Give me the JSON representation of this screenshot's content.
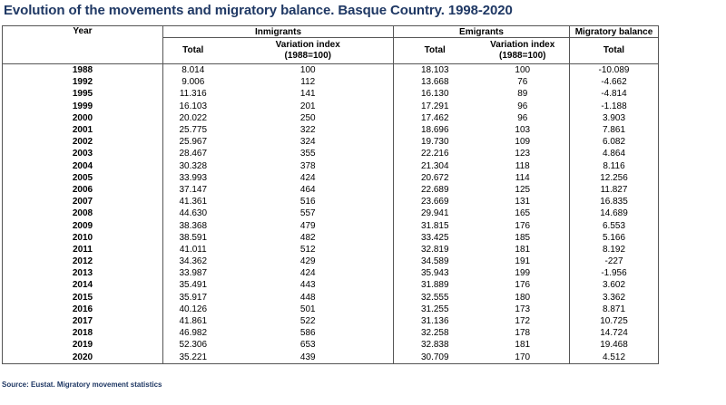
{
  "title": "Evolution of the movements and migratory balance. Basque Country. 1998-2020",
  "headers": {
    "year": "Year",
    "inmigrants": "Inmigrants",
    "emigrants": "Emigrants",
    "migratory_balance": "Migratory balance",
    "total": "Total",
    "variation_index": "Variation index",
    "base": "(1988=100)"
  },
  "rows": [
    {
      "year": "1988",
      "in_total": "8.014",
      "in_index": "100",
      "em_total": "18.103",
      "em_index": "100",
      "balance": "-10.089"
    },
    {
      "year": "1992",
      "in_total": "9.006",
      "in_index": "112",
      "em_total": "13.668",
      "em_index": "76",
      "balance": "-4.662"
    },
    {
      "year": "1995",
      "in_total": "11.316",
      "in_index": "141",
      "em_total": "16.130",
      "em_index": "89",
      "balance": "-4.814"
    },
    {
      "year": "1999",
      "in_total": "16.103",
      "in_index": "201",
      "em_total": "17.291",
      "em_index": "96",
      "balance": "-1.188"
    },
    {
      "year": "2000",
      "in_total": "20.022",
      "in_index": "250",
      "em_total": "17.462",
      "em_index": "96",
      "balance": "3.903"
    },
    {
      "year": "2001",
      "in_total": "25.775",
      "in_index": "322",
      "em_total": "18.696",
      "em_index": "103",
      "balance": "7.861"
    },
    {
      "year": "2002",
      "in_total": "25.967",
      "in_index": "324",
      "em_total": "19.730",
      "em_index": "109",
      "balance": "6.082"
    },
    {
      "year": "2003",
      "in_total": "28.467",
      "in_index": "355",
      "em_total": "22.216",
      "em_index": "123",
      "balance": "4.864"
    },
    {
      "year": "2004",
      "in_total": "30.328",
      "in_index": "378",
      "em_total": "21.304",
      "em_index": "118",
      "balance": "8.116"
    },
    {
      "year": "2005",
      "in_total": "33.993",
      "in_index": "424",
      "em_total": "20.672",
      "em_index": "114",
      "balance": "12.256"
    },
    {
      "year": "2006",
      "in_total": "37.147",
      "in_index": "464",
      "em_total": "22.689",
      "em_index": "125",
      "balance": "11.827"
    },
    {
      "year": "2007",
      "in_total": "41.361",
      "in_index": "516",
      "em_total": "23.669",
      "em_index": "131",
      "balance": "16.835"
    },
    {
      "year": "2008",
      "in_total": "44.630",
      "in_index": "557",
      "em_total": "29.941",
      "em_index": "165",
      "balance": "14.689"
    },
    {
      "year": "2009",
      "in_total": "38.368",
      "in_index": "479",
      "em_total": "31.815",
      "em_index": "176",
      "balance": "6.553"
    },
    {
      "year": "2010",
      "in_total": "38.591",
      "in_index": "482",
      "em_total": "33.425",
      "em_index": "185",
      "balance": "5.166"
    },
    {
      "year": "2011",
      "in_total": "41.011",
      "in_index": "512",
      "em_total": "32.819",
      "em_index": "181",
      "balance": "8.192"
    },
    {
      "year": "2012",
      "in_total": "34.362",
      "in_index": "429",
      "em_total": "34.589",
      "em_index": "191",
      "balance": "-227"
    },
    {
      "year": "2013",
      "in_total": "33.987",
      "in_index": "424",
      "em_total": "35.943",
      "em_index": "199",
      "balance": "-1.956"
    },
    {
      "year": "2014",
      "in_total": "35.491",
      "in_index": "443",
      "em_total": "31.889",
      "em_index": "176",
      "balance": "3.602"
    },
    {
      "year": "2015",
      "in_total": "35.917",
      "in_index": "448",
      "em_total": "32.555",
      "em_index": "180",
      "balance": "3.362"
    },
    {
      "year": "2016",
      "in_total": "40.126",
      "in_index": "501",
      "em_total": "31.255",
      "em_index": "173",
      "balance": "8.871"
    },
    {
      "year": "2017",
      "in_total": "41.861",
      "in_index": "522",
      "em_total": "31.136",
      "em_index": "172",
      "balance": "10.725"
    },
    {
      "year": "2018",
      "in_total": "46.982",
      "in_index": "586",
      "em_total": "32.258",
      "em_index": "178",
      "balance": "14.724"
    },
    {
      "year": "2019",
      "in_total": "52.306",
      "in_index": "653",
      "em_total": "32.838",
      "em_index": "181",
      "balance": "19.468"
    },
    {
      "year": "2020",
      "in_total": "35.221",
      "in_index": "439",
      "em_total": "30.709",
      "em_index": "170",
      "balance": "4.512"
    }
  ],
  "source": "Source: Eustat. Migratory movement statistics",
  "colors": {
    "title": "#1f3864",
    "source": "#1f3864",
    "border": "#555555"
  }
}
